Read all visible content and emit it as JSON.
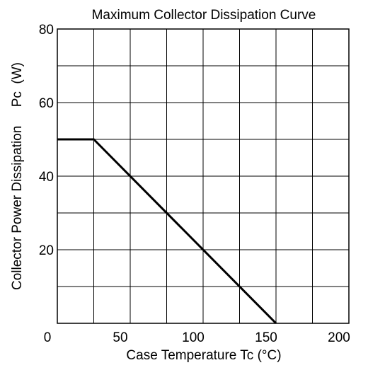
{
  "chart_data": {
    "type": "line",
    "title": "Maximum Collector Dissipation Curve",
    "xlabel": "Case Temperature    Tc  (°C)",
    "ylabel": "Collector Power Dissipation     Pc  (W)",
    "xlim": [
      0,
      200
    ],
    "ylim": [
      0,
      80
    ],
    "x_ticks": [
      0,
      50,
      100,
      150,
      200
    ],
    "y_ticks": [
      20,
      40,
      60,
      80
    ],
    "x_tick_labels": [
      "0",
      "50",
      "100",
      "150",
      "200"
    ],
    "y_tick_labels": [
      "20",
      "40",
      "60",
      "80"
    ],
    "grid": true,
    "grid_x_step": 25,
    "grid_y_step": 10,
    "series": [
      {
        "x": [
          0,
          25,
          150
        ],
        "y": [
          50,
          50,
          0
        ],
        "color": "#000000"
      }
    ]
  }
}
